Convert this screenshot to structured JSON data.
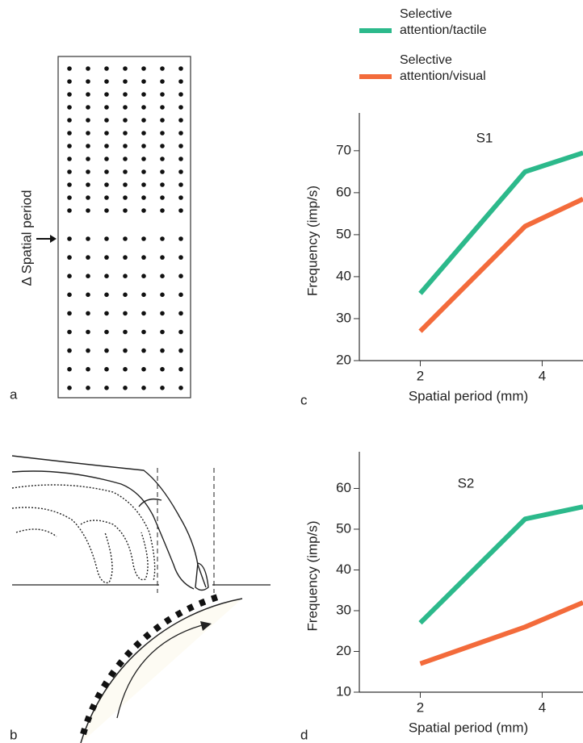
{
  "panel_labels": [
    "a",
    "b",
    "c",
    "d"
  ],
  "diagram": {
    "annotation": "Δ Spatial period"
  },
  "chart_data": [
    {
      "type": "line",
      "subtitle": "S1",
      "x_label": "Spatial period (mm)",
      "y_label": "Frequency (imp/s)",
      "x": [
        2,
        3.72,
        4.67
      ],
      "xlim": [
        1,
        4.67
      ],
      "xticks": [
        2,
        4
      ],
      "ylim": [
        20,
        79
      ],
      "yticks": [
        20,
        30,
        40,
        50,
        60,
        70
      ],
      "series": [
        {
          "name": "Selective attention/tactile",
          "color": "#2cb98b",
          "values": [
            36,
            65,
            69.5
          ]
        },
        {
          "name": "Selective attention/visual",
          "color": "#f36b3b",
          "values": [
            27,
            52,
            58.5
          ]
        }
      ]
    },
    {
      "type": "line",
      "subtitle": "S2",
      "x_label": "Spatial period (mm)",
      "y_label": "Frequency (imp/s)",
      "x": [
        2,
        3.72,
        4.67
      ],
      "xlim": [
        1,
        4.67
      ],
      "xticks": [
        2,
        4
      ],
      "ylim": [
        10,
        69
      ],
      "yticks": [
        10,
        20,
        30,
        40,
        50,
        60
      ],
      "series": [
        {
          "name": "Selective attention/tactile",
          "color": "#2cb98b",
          "values": [
            27,
            52.5,
            55.5
          ]
        },
        {
          "name": "Selective attention/visual",
          "color": "#f36b3b",
          "values": [
            17,
            26,
            32
          ]
        }
      ]
    }
  ]
}
